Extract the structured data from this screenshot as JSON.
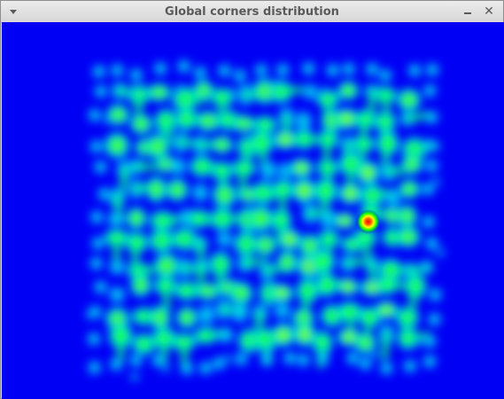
{
  "window": {
    "title": "Global corners distribution"
  },
  "icons": {
    "menu": "chevron-down-icon",
    "minimize": "minimize-icon",
    "close": "close-icon"
  },
  "heatmap": {
    "background_color": "#0000f5",
    "colormap": [
      "#0000ff",
      "#00ffff",
      "#00ff00",
      "#ffff00",
      "#ff0000"
    ],
    "description": "Heatmap of detected corner positions arranged in a grid"
  },
  "chart_data": {
    "type": "heatmap",
    "title": "Global corners distribution",
    "grid_rows": 13,
    "grid_cols": 17,
    "peak": {
      "row": 6,
      "col": 13,
      "intensity": 1.0
    }
  }
}
